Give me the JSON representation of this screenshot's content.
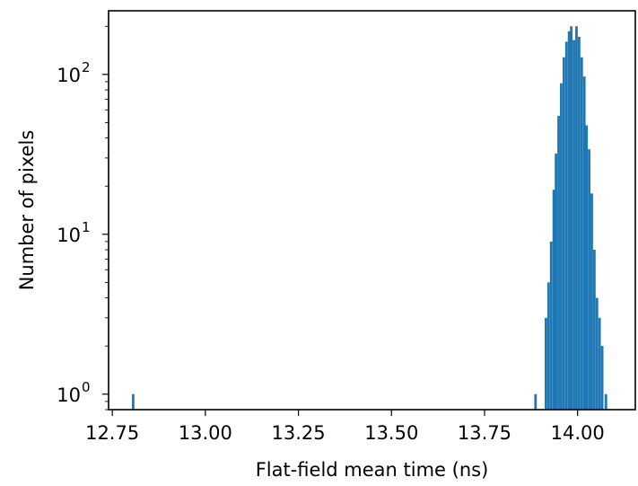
{
  "chart_data": {
    "type": "bar",
    "subtype": "histogram",
    "title": "",
    "xlabel": "Flat-field mean time (ns)",
    "ylabel": "Number of pixels",
    "xlim": [
      12.74,
      14.155
    ],
    "ylim": [
      0.8,
      250
    ],
    "yscale": "log",
    "grid": false,
    "legend": "none",
    "bar_color": "#1f77b4",
    "bin_width": 0.0068,
    "xticks": [
      {
        "value": 12.75,
        "label": "12.75"
      },
      {
        "value": 13.0,
        "label": "13.00"
      },
      {
        "value": 13.25,
        "label": "13.25"
      },
      {
        "value": 13.5,
        "label": "13.50"
      },
      {
        "value": 13.75,
        "label": "13.75"
      },
      {
        "value": 14.0,
        "label": "14.00"
      }
    ],
    "yticks": [
      {
        "value": 1,
        "base": "10",
        "exp": "0"
      },
      {
        "value": 10,
        "base": "10",
        "exp": "1"
      },
      {
        "value": 100,
        "base": "10",
        "exp": "2"
      }
    ],
    "bins": [
      {
        "x": 12.806,
        "count": 1
      },
      {
        "x": 13.887,
        "count": 1
      },
      {
        "x": 13.915,
        "count": 3
      },
      {
        "x": 13.922,
        "count": 5
      },
      {
        "x": 13.929,
        "count": 9
      },
      {
        "x": 13.936,
        "count": 19
      },
      {
        "x": 13.942,
        "count": 32
      },
      {
        "x": 13.949,
        "count": 55
      },
      {
        "x": 13.956,
        "count": 88
      },
      {
        "x": 13.963,
        "count": 128
      },
      {
        "x": 13.97,
        "count": 160
      },
      {
        "x": 13.977,
        "count": 186
      },
      {
        "x": 13.983,
        "count": 200
      },
      {
        "x": 13.99,
        "count": 164
      },
      {
        "x": 13.997,
        "count": 200
      },
      {
        "x": 14.004,
        "count": 172
      },
      {
        "x": 14.011,
        "count": 128
      },
      {
        "x": 14.018,
        "count": 97
      },
      {
        "x": 14.024,
        "count": 48
      },
      {
        "x": 14.031,
        "count": 34
      },
      {
        "x": 14.038,
        "count": 18
      },
      {
        "x": 14.045,
        "count": 8
      },
      {
        "x": 14.052,
        "count": 4
      },
      {
        "x": 14.059,
        "count": 3
      },
      {
        "x": 14.066,
        "count": 2
      },
      {
        "x": 14.076,
        "count": 1
      }
    ]
  }
}
